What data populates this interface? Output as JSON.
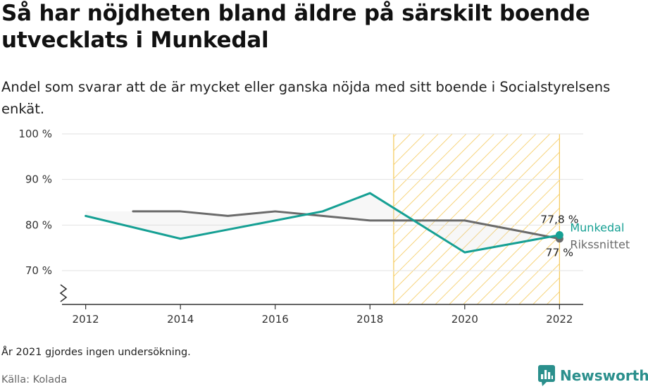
{
  "title": "Så har nöjdheten bland äldre på särskilt boende utvecklats i Munkedal",
  "subtitle": "Andel som svarar att de är mycket eller ganska nöjda med sitt boende i Socialstyrelsens enkät.",
  "note": "År 2021 gjordes ingen undersökning.",
  "source": "Källa: Kolada",
  "brand": {
    "name": "Newsworthy",
    "icon": "newsworthy-logo-icon",
    "color": "#2a8f8c"
  },
  "chart_data": {
    "type": "line",
    "title": "",
    "xlabel": "",
    "ylabel": "",
    "ylim": [
      70,
      100
    ],
    "y_axis_break": true,
    "y_ticks": [
      {
        "value": 70,
        "label": "70 %"
      },
      {
        "value": 80,
        "label": "80 %"
      },
      {
        "value": 90,
        "label": "90 %"
      },
      {
        "value": 100,
        "label": "100 %"
      }
    ],
    "x_ticks": [
      {
        "value": 2012,
        "label": "2012"
      },
      {
        "value": 2014,
        "label": "2014"
      },
      {
        "value": 2016,
        "label": "2016"
      },
      {
        "value": 2018,
        "label": "2018"
      },
      {
        "value": 2020,
        "label": "2020"
      },
      {
        "value": 2022,
        "label": "2022"
      }
    ],
    "xlim": [
      2011.5,
      2022.5
    ],
    "grid": true,
    "highlight_band": {
      "from": 2018.5,
      "to": 2022,
      "color": "#f7c948",
      "pattern": "diagonal-hatch"
    },
    "series": [
      {
        "name": "Munkedal",
        "color": "#16a094",
        "points": [
          [
            2012,
            82
          ],
          [
            2014,
            77
          ],
          [
            2015,
            79
          ],
          [
            2016,
            81
          ],
          [
            2017,
            83
          ],
          [
            2018,
            87
          ],
          [
            2020,
            74
          ],
          [
            2022,
            77.8
          ]
        ],
        "end_value_label": "77,8 %"
      },
      {
        "name": "Rikssnittet",
        "color": "#6b6b6b",
        "points": [
          [
            2013,
            83
          ],
          [
            2014,
            83
          ],
          [
            2015,
            82
          ],
          [
            2016,
            83
          ],
          [
            2017,
            82
          ],
          [
            2018,
            81
          ],
          [
            2020,
            81
          ],
          [
            2022,
            77
          ]
        ],
        "end_value_label": "77 %"
      }
    ]
  }
}
